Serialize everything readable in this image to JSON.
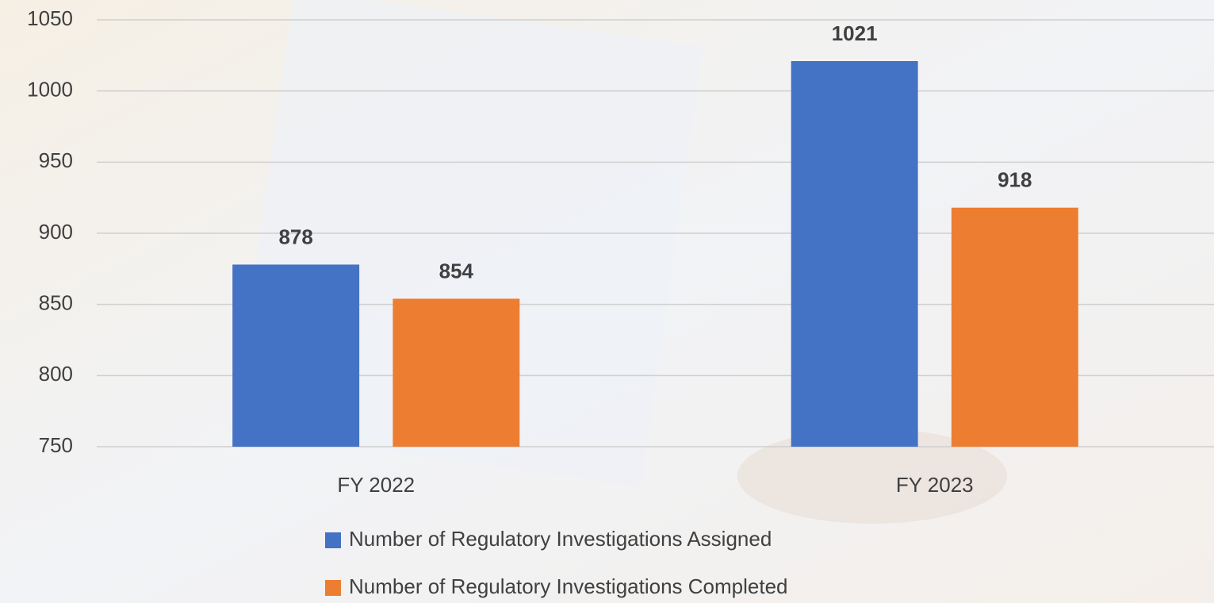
{
  "chart_data": {
    "type": "bar",
    "categories": [
      "FY 2022",
      "FY 2023"
    ],
    "series": [
      {
        "name": "Number of Regulatory Investigations Assigned",
        "color": "#4472c4",
        "values": [
          878,
          1021
        ]
      },
      {
        "name": "Number of Regulatory Investigations Completed",
        "color": "#ed7d31",
        "values": [
          854,
          918
        ]
      }
    ],
    "ylim": [
      750,
      1050
    ],
    "yticks": [
      750,
      800,
      850,
      900,
      950,
      1000,
      1050
    ],
    "grid": true
  }
}
